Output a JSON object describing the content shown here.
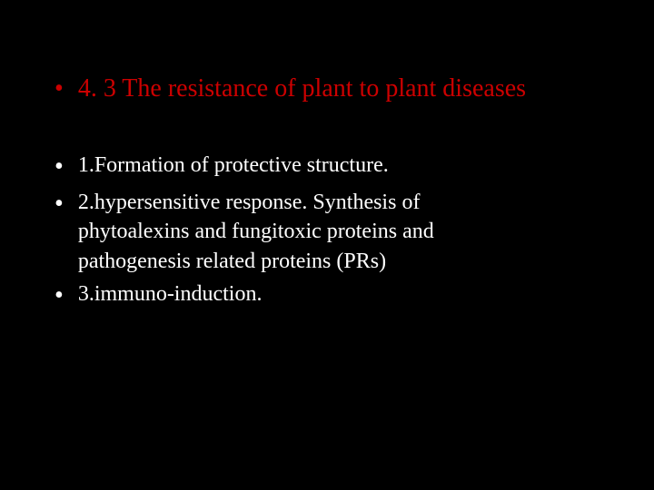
{
  "slide": {
    "background_color": "#000000",
    "title": {
      "text": "4. 3 The resistance of plant to plant diseases",
      "color": "#cc0000",
      "fontsize": 28,
      "bullet": "•"
    },
    "body": {
      "color": "#ffffff",
      "fontsize": 24,
      "bullet": "•",
      "items": [
        {
          "lines": [
            "1.Formation of protective structure."
          ]
        },
        {
          "lines": [
            "2.hypersensitive response. Synthesis of",
            "phytoalexins and fungitoxic proteins and",
            "pathogenesis related proteins (PRs)"
          ]
        },
        {
          "lines": [
            "3.immuno-induction."
          ]
        }
      ]
    }
  }
}
